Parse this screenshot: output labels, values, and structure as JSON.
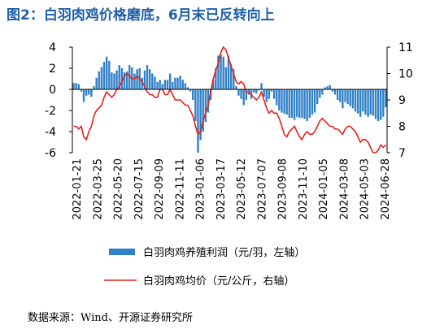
{
  "title": "图2：白羽肉鸡价格磨底，6月末已反转向上",
  "source": "数据来源：Wind、开源证券研究所",
  "chart_data": {
    "type": "bar+line",
    "x_ticks": [
      "2022-01-21",
      "2022-03-25",
      "2022-05-20",
      "2022-07-15",
      "2022-09-09",
      "2022-11-11",
      "2023-01-06",
      "2023-03-17",
      "2023-05-12",
      "2023-07-07",
      "2023-09-08",
      "2023-11-10",
      "2024-01-05",
      "2024-03-08",
      "2024-05-03",
      "2024-06-28"
    ],
    "left_axis": {
      "ylim": [
        -6,
        4
      ],
      "ticks": [
        "4",
        "2",
        "0",
        "-2",
        "-4",
        "-6"
      ]
    },
    "right_axis": {
      "ylim": [
        7,
        11
      ],
      "ticks": [
        "11",
        "10",
        "9",
        "8",
        "7"
      ]
    },
    "series": [
      {
        "name": "白羽肉鸡养殖利润（元/羽，左轴）",
        "type": "bar",
        "axis": "left",
        "color": "#2f80c8",
        "values": [
          0.6,
          0.6,
          0.5,
          -0.2,
          -1.2,
          -0.6,
          -0.5,
          -0.7,
          0.3,
          1.1,
          1.7,
          2.1,
          2.6,
          3.1,
          2.7,
          1.6,
          1.5,
          1.8,
          2.3,
          2.0,
          1.6,
          1.7,
          2.3,
          2.1,
          1.5,
          1.9,
          2.0,
          1.1,
          1.8,
          2.3,
          1.9,
          1.5,
          1.2,
          0.7,
          0.9,
          0.5,
          0.9,
          0.9,
          1.5,
          0.7,
          1.1,
          1.1,
          1.3,
          0.9,
          0.6,
          0.2,
          -0.2,
          -1.0,
          -3.0,
          -6.0,
          -4.8,
          -4.0,
          -3.1,
          -2.2,
          -1.0,
          0.9,
          2.0,
          3.2,
          3.3,
          3.1,
          2.1,
          3.2,
          2.4,
          1.9,
          0.3,
          -0.6,
          -0.9,
          -1.5,
          -1.0,
          -0.5,
          -0.9,
          -0.3,
          -0.4,
          -0.1,
          0.6,
          -0.7,
          -1.2,
          -0.9,
          -0.2,
          -0.9,
          -1.5,
          -2.0,
          -2.2,
          -2.3,
          -2.4,
          -2.7,
          -2.7,
          -2.9,
          -2.6,
          -2.7,
          -2.7,
          -2.8,
          -3.0,
          -2.7,
          -2.4,
          -2.2,
          -1.4,
          -0.8,
          -0.5,
          0.2,
          0.3,
          0.4,
          -0.2,
          -0.5,
          -1.0,
          -1.2,
          -1.8,
          -1.2,
          -1.4,
          -1.6,
          -1.8,
          -2.1,
          -2.3,
          -2.6,
          -2.1,
          -2.4,
          -2.6,
          -2.4,
          -2.5,
          -2.8,
          -3.0,
          -2.9,
          -2.6,
          -1.7
        ]
      },
      {
        "name": "白羽肉鸡均价（元/公斤，右轴）",
        "type": "line",
        "axis": "right",
        "color": "#e8201c",
        "values": [
          8.0,
          8.0,
          7.9,
          8.0,
          7.6,
          7.5,
          7.8,
          8.0,
          8.4,
          8.6,
          8.7,
          8.8,
          9.1,
          9.3,
          9.2,
          9.1,
          9.2,
          9.4,
          9.5,
          9.7,
          9.9,
          10.0,
          9.9,
          9.8,
          9.8,
          9.9,
          9.8,
          9.7,
          9.5,
          9.3,
          9.2,
          9.2,
          9.1,
          9.1,
          9.4,
          9.4,
          9.2,
          9.2,
          9.4,
          9.2,
          9.0,
          9.0,
          9.0,
          8.9,
          8.8,
          8.8,
          8.6,
          8.4,
          8.0,
          7.7,
          7.8,
          8.2,
          8.5,
          8.8,
          9.3,
          9.8,
          10.1,
          10.4,
          10.8,
          11.0,
          10.9,
          10.6,
          10.3,
          10.0,
          9.7,
          9.6,
          9.7,
          9.6,
          9.3,
          9.3,
          9.2,
          9.1,
          9.0,
          9.1,
          9.3,
          9.0,
          8.7,
          8.5,
          8.6,
          8.5,
          8.5,
          8.3,
          8.0,
          7.7,
          7.6,
          7.8,
          7.9,
          8.0,
          7.8,
          7.6,
          7.5,
          7.7,
          7.8,
          7.7,
          7.7,
          7.8,
          8.0,
          8.2,
          8.3,
          8.2,
          8.1,
          8.0,
          8.0,
          7.9,
          7.9,
          7.8,
          7.7,
          7.9,
          8.0,
          8.0,
          7.9,
          7.8,
          7.6,
          7.4,
          7.5,
          7.5,
          7.4,
          7.2,
          7.0,
          7.0,
          7.1,
          7.3,
          7.2,
          7.3
        ]
      }
    ],
    "legend_placement": "bottom",
    "grid": false
  }
}
